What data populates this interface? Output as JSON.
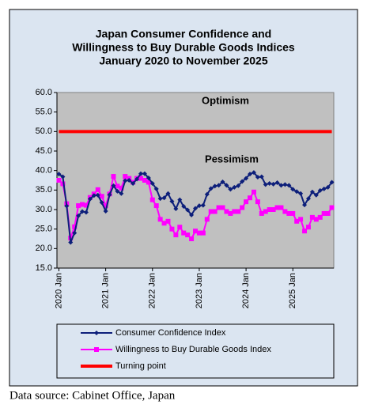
{
  "chart_data": {
    "type": "line",
    "title": [
      "Japan Consumer Confidence and",
      "Willingness to Buy Durable Goods Indices",
      "January 2020 to November 2025"
    ],
    "annotations": [
      "Optimism",
      "Pessimism"
    ],
    "source": "Data source: Cabinet Office, Japan",
    "categories": [
      "2020 Jan",
      null,
      null,
      null,
      null,
      null,
      null,
      null,
      null,
      null,
      null,
      null,
      "2021 Jan",
      null,
      null,
      null,
      null,
      null,
      null,
      null,
      null,
      null,
      null,
      null,
      "2022 Jan",
      null,
      null,
      null,
      null,
      null,
      null,
      null,
      null,
      null,
      null,
      null,
      "2023 Jan",
      null,
      null,
      null,
      null,
      null,
      null,
      null,
      null,
      null,
      null,
      null,
      "2024 Jan",
      null,
      null,
      null,
      null,
      null,
      null,
      null,
      null,
      null,
      null,
      null,
      "2025 Jan",
      null,
      null,
      null,
      null,
      null,
      null,
      null,
      null,
      null,
      null
    ],
    "series": [
      {
        "name": "Consumer Confidence Index",
        "color": "#0d1f7a",
        "marker": "diamond",
        "values": [
          39.1,
          38.4,
          30.9,
          21.6,
          24.0,
          28.4,
          29.5,
          29.3,
          32.7,
          33.6,
          33.7,
          31.8,
          29.6,
          33.8,
          36.1,
          34.7,
          34.1,
          37.4,
          37.5,
          36.7,
          37.8,
          39.2,
          39.2,
          38.1,
          36.7,
          35.3,
          32.8,
          33.0,
          34.1,
          32.1,
          30.2,
          32.5,
          30.8,
          29.9,
          28.6,
          30.3,
          31.0,
          31.1,
          33.9,
          35.4,
          36.0,
          36.2,
          37.1,
          36.2,
          35.2,
          35.7,
          36.1,
          37.2,
          38.0,
          39.1,
          39.5,
          38.3,
          38.4,
          36.4,
          36.7,
          36.5,
          36.9,
          36.2,
          36.4,
          36.2,
          35.2,
          34.6,
          34.1,
          31.2,
          32.8,
          34.5,
          33.7,
          34.9,
          35.3,
          35.7,
          37.0
        ]
      },
      {
        "name": "Willingness to Buy Durable Goods Index",
        "color": "#ff00ff",
        "marker": "square",
        "values": [
          37.5,
          36.6,
          31.5,
          22.7,
          25.6,
          31.0,
          31.3,
          31.1,
          33.1,
          34.0,
          35.1,
          33.4,
          31.0,
          34.0,
          38.5,
          36.0,
          35.5,
          38.5,
          38.0,
          37.0,
          38.0,
          38.0,
          37.5,
          37.0,
          32.5,
          31.0,
          27.5,
          26.5,
          27.0,
          25.0,
          23.5,
          25.5,
          24.0,
          23.5,
          22.5,
          24.5,
          24.0,
          24.0,
          27.5,
          29.5,
          29.5,
          30.5,
          30.5,
          29.5,
          29.0,
          29.5,
          29.5,
          30.5,
          32.0,
          33.0,
          34.5,
          32.0,
          29.0,
          29.5,
          30.0,
          30.0,
          30.5,
          30.5,
          29.5,
          29.0,
          29.0,
          27.0,
          27.5,
          24.5,
          25.5,
          28.0,
          27.5,
          28.0,
          29.0,
          29.0,
          30.5
        ]
      },
      {
        "name": "Turning point",
        "color": "#ff0000",
        "marker": "none",
        "values": [
          50,
          50,
          50,
          50,
          50,
          50,
          50,
          50,
          50,
          50,
          50,
          50,
          50,
          50,
          50,
          50,
          50,
          50,
          50,
          50,
          50,
          50,
          50,
          50,
          50,
          50,
          50,
          50,
          50,
          50,
          50,
          50,
          50,
          50,
          50,
          50,
          50,
          50,
          50,
          50,
          50,
          50,
          50,
          50,
          50,
          50,
          50,
          50,
          50,
          50,
          50,
          50,
          50,
          50,
          50,
          50,
          50,
          50,
          50,
          50,
          50,
          50,
          50,
          50,
          50,
          50,
          50,
          50,
          50,
          50,
          50
        ]
      }
    ],
    "ylim": [
      15,
      60
    ],
    "yticks": [
      {
        "value": 15,
        "label": "15.0"
      },
      {
        "value": 20,
        "label": "20.0"
      },
      {
        "value": 25,
        "label": "25.0"
      },
      {
        "value": 30,
        "label": "30.0"
      },
      {
        "value": 35,
        "label": "35.0"
      },
      {
        "value": 40,
        "label": "40.0"
      },
      {
        "value": 45,
        "label": "45.0"
      },
      {
        "value": 50,
        "label": "50.0"
      },
      {
        "value": 55,
        "label": "55.0"
      },
      {
        "value": 60,
        "label": "60.0"
      }
    ],
    "grid": false
  }
}
